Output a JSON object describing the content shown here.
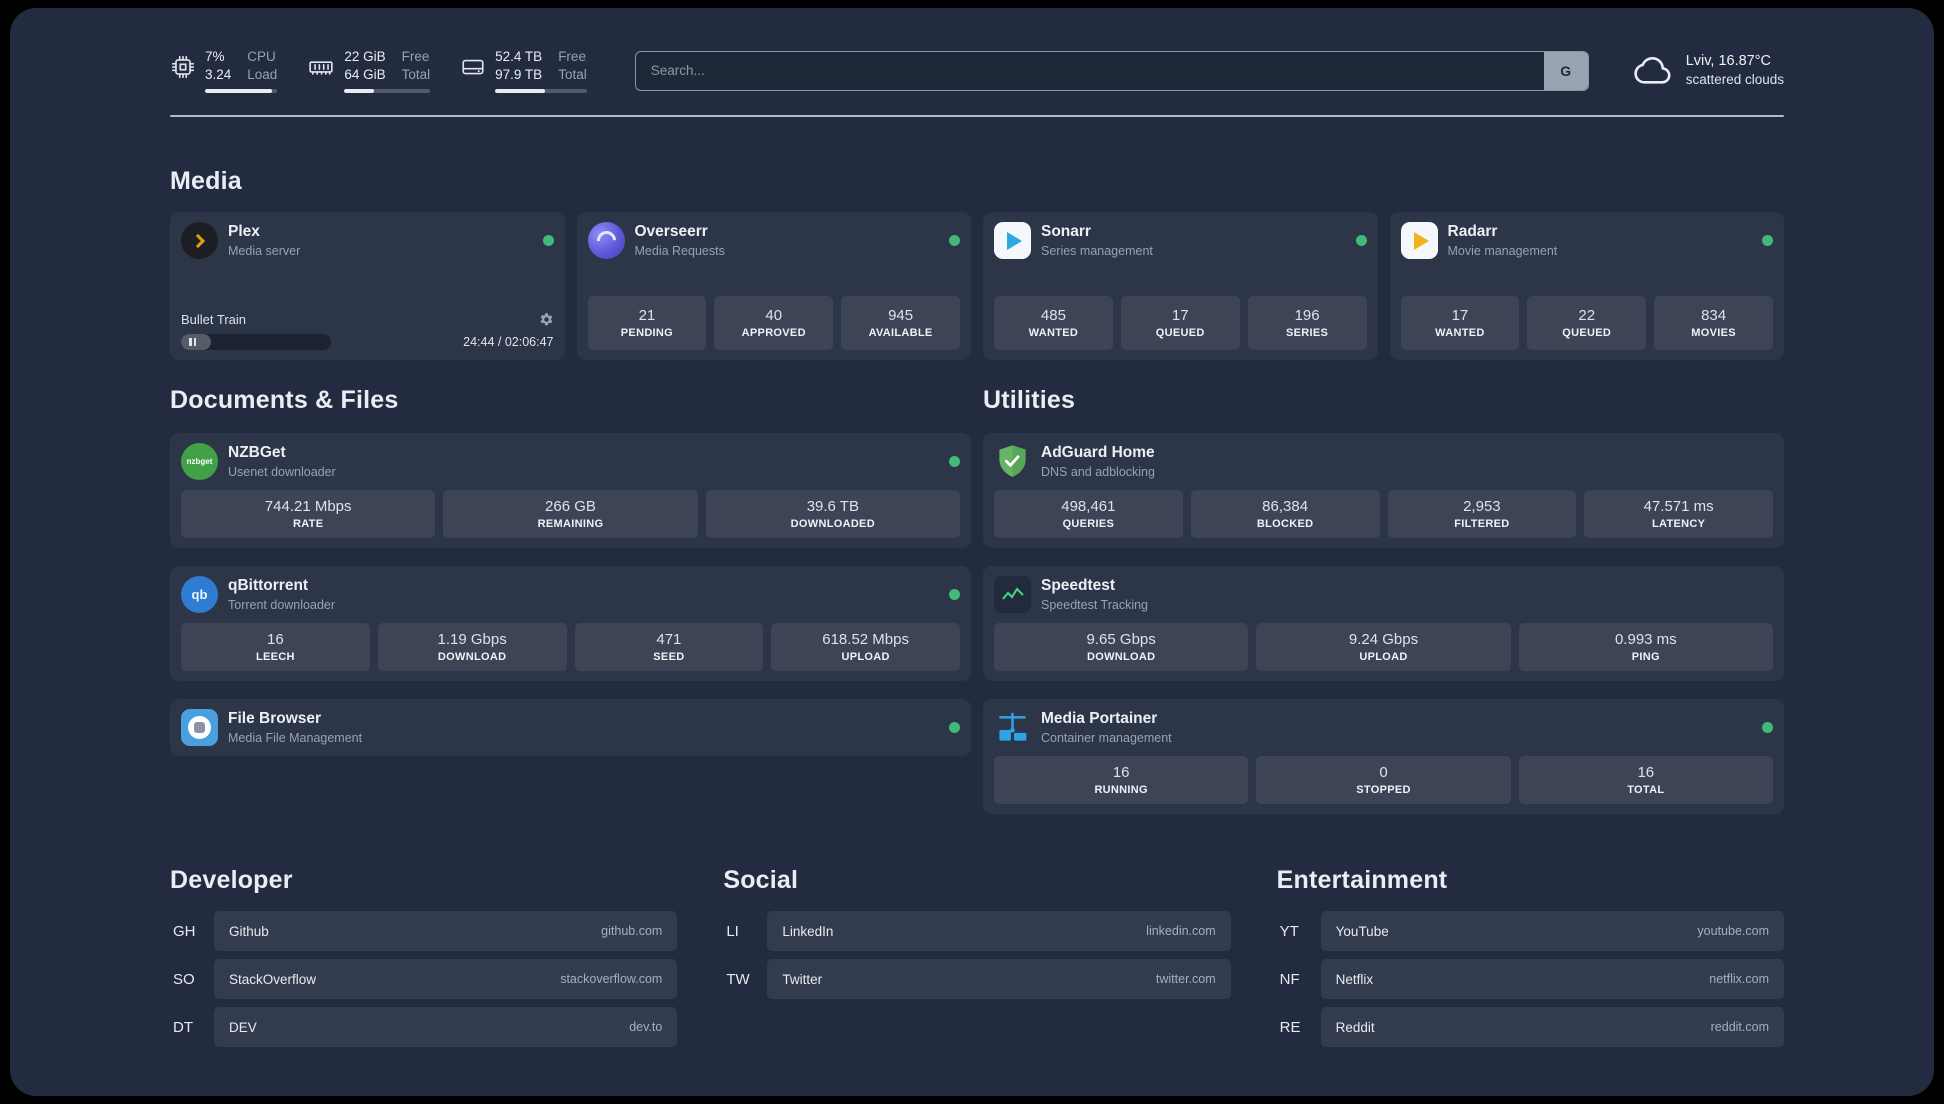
{
  "colors": {
    "page_background": "#222b3f",
    "status_green": "#41b979",
    "accent_plex": "#e5a00d"
  },
  "icons": {
    "cpu": "cpu-chip-outline",
    "memory": "ram-stick-outline",
    "disk": "hard-drive-outline",
    "weather": "cloud-outline",
    "settings": "gear",
    "pause": "pause-bars"
  },
  "topbar": {
    "resources": [
      {
        "icon": "cpu-icon",
        "values": [
          "7%",
          "3.24"
        ],
        "labels": [
          "CPU",
          "Load"
        ],
        "bar_pct": 92
      },
      {
        "icon": "memory-icon",
        "values": [
          "22 GiB",
          "64 GiB"
        ],
        "labels": [
          "Free",
          "Total"
        ],
        "bar_pct": 34
      },
      {
        "icon": "disk-icon",
        "values": [
          "52.4 TB",
          "97.9 TB"
        ],
        "labels": [
          "Free",
          "Total"
        ],
        "bar_pct": 54
      }
    ],
    "search": {
      "placeholder": "Search...",
      "button_label": "G"
    },
    "weather": {
      "location": "Lviv, 16.87°C",
      "condition": "scattered clouds"
    }
  },
  "sections": {
    "media": {
      "title": "Media",
      "cards": [
        {
          "name": "Plex",
          "desc": "Media server",
          "icon": "plex-icon",
          "player": {
            "track": "Bullet Train",
            "time": "24:44 / 02:06:47",
            "progress_pct": 20
          }
        },
        {
          "name": "Overseerr",
          "desc": "Media Requests",
          "icon": "overseerr-icon",
          "stats": [
            {
              "value": "21",
              "label": "PENDING"
            },
            {
              "value": "40",
              "label": "APPROVED"
            },
            {
              "value": "945",
              "label": "AVAILABLE"
            }
          ]
        },
        {
          "name": "Sonarr",
          "desc": "Series management",
          "icon": "sonarr-icon",
          "stats": [
            {
              "value": "485",
              "label": "WANTED"
            },
            {
              "value": "17",
              "label": "QUEUED"
            },
            {
              "value": "196",
              "label": "SERIES"
            }
          ]
        },
        {
          "name": "Radarr",
          "desc": "Movie management",
          "icon": "radarr-icon",
          "stats": [
            {
              "value": "17",
              "label": "WANTED"
            },
            {
              "value": "22",
              "label": "QUEUED"
            },
            {
              "value": "834",
              "label": "MOVIES"
            }
          ]
        }
      ]
    },
    "documents": {
      "title": "Documents & Files",
      "cards": [
        {
          "name": "NZBGet",
          "desc": "Usenet downloader",
          "icon": "nzbget-icon",
          "icon_text": "nzbget",
          "stats": [
            {
              "value": "744.21 Mbps",
              "label": "RATE"
            },
            {
              "value": "266 GB",
              "label": "REMAINING"
            },
            {
              "value": "39.6 TB",
              "label": "DOWNLOADED"
            }
          ]
        },
        {
          "name": "qBittorrent",
          "desc": "Torrent downloader",
          "icon": "qbittorrent-icon",
          "icon_text": "qb",
          "stats": [
            {
              "value": "16",
              "label": "LEECH"
            },
            {
              "value": "1.19 Gbps",
              "label": "DOWNLOAD"
            },
            {
              "value": "471",
              "label": "SEED"
            },
            {
              "value": "618.52 Mbps",
              "label": "UPLOAD"
            }
          ]
        },
        {
          "name": "File Browser",
          "desc": "Media File Management",
          "icon": "filebrowser-icon"
        }
      ]
    },
    "utilities": {
      "title": "Utilities",
      "cards": [
        {
          "name": "AdGuard Home",
          "desc": "DNS and adblocking",
          "icon": "adguard-icon",
          "stats": [
            {
              "value": "498,461",
              "label": "QUERIES"
            },
            {
              "value": "86,384",
              "label": "BLOCKED"
            },
            {
              "value": "2,953",
              "label": "FILTERED"
            },
            {
              "value": "47.571 ms",
              "label": "LATENCY"
            }
          ]
        },
        {
          "name": "Speedtest",
          "desc": "Speedtest Tracking",
          "icon": "speedtest-icon",
          "stats": [
            {
              "value": "9.65 Gbps",
              "label": "DOWNLOAD"
            },
            {
              "value": "9.24 Gbps",
              "label": "UPLOAD"
            },
            {
              "value": "0.993 ms",
              "label": "PING"
            }
          ]
        },
        {
          "name": "Media Portainer",
          "desc": "Container management",
          "icon": "portainer-icon",
          "stats": [
            {
              "value": "16",
              "label": "RUNNING"
            },
            {
              "value": "0",
              "label": "STOPPED"
            },
            {
              "value": "16",
              "label": "TOTAL"
            }
          ]
        }
      ]
    },
    "bookmarks": [
      {
        "title": "Developer",
        "items": [
          {
            "abbr": "GH",
            "name": "Github",
            "url": "github.com"
          },
          {
            "abbr": "SO",
            "name": "StackOverflow",
            "url": "stackoverflow.com"
          },
          {
            "abbr": "DT",
            "name": "DEV",
            "url": "dev.to"
          }
        ]
      },
      {
        "title": "Social",
        "items": [
          {
            "abbr": "LI",
            "name": "LinkedIn",
            "url": "linkedin.com"
          },
          {
            "abbr": "TW",
            "name": "Twitter",
            "url": "twitter.com"
          }
        ]
      },
      {
        "title": "Entertainment",
        "items": [
          {
            "abbr": "YT",
            "name": "YouTube",
            "url": "youtube.com"
          },
          {
            "abbr": "NF",
            "name": "Netflix",
            "url": "netflix.com"
          },
          {
            "abbr": "RE",
            "name": "Reddit",
            "url": "reddit.com"
          }
        ]
      }
    ]
  }
}
